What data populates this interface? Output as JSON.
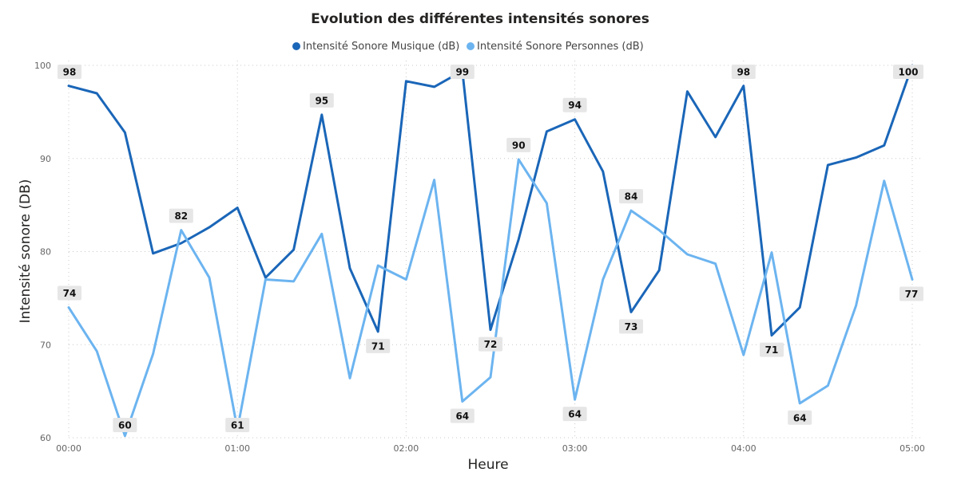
{
  "chart_data": {
    "type": "line",
    "title": "Evolution des différentes intensités sonores",
    "xlabel": "Heure",
    "ylabel": "Intensité sonore (DB)",
    "x_ticks": [
      "00:00",
      "01:00",
      "02:00",
      "03:00",
      "04:00",
      "05:00"
    ],
    "y_ticks": [
      60,
      70,
      80,
      90,
      100
    ],
    "ylim": [
      60,
      100
    ],
    "x_unit_minutes": 10,
    "x": [
      "00:00",
      "00:10",
      "00:20",
      "00:30",
      "00:40",
      "00:50",
      "01:00",
      "01:10",
      "01:20",
      "01:30",
      "01:40",
      "01:50",
      "02:00",
      "02:10",
      "02:20",
      "02:30",
      "02:40",
      "02:50",
      "03:00",
      "03:10",
      "03:20",
      "03:30",
      "03:40",
      "03:50",
      "04:00",
      "04:10",
      "04:20",
      "04:30",
      "04:40",
      "04:50",
      "05:00"
    ],
    "grid": true,
    "legend_position": "top-center",
    "series": [
      {
        "name": "Intensité Sonore Musique (dB)",
        "color": "#1a66b8",
        "values": [
          97.8,
          97.0,
          92.8,
          79.8,
          80.9,
          82.6,
          84.7,
          77.2,
          80.2,
          94.7,
          78.2,
          71.4,
          98.3,
          97.7,
          99.4,
          71.6,
          81.3,
          92.9,
          94.2,
          88.6,
          73.5,
          78.0,
          97.2,
          92.3,
          97.8,
          71.0,
          74.0,
          89.3,
          90.1,
          91.4,
          100.0
        ],
        "labels": [
          {
            "i": 0,
            "text": "98"
          },
          {
            "i": 9,
            "text": "95"
          },
          {
            "i": 11,
            "text": "71"
          },
          {
            "i": 14,
            "text": "99"
          },
          {
            "i": 15,
            "text": "72"
          },
          {
            "i": 18,
            "text": "94"
          },
          {
            "i": 20,
            "text": "73"
          },
          {
            "i": 24,
            "text": "98"
          },
          {
            "i": 25,
            "text": "71"
          },
          {
            "i": 30,
            "text": "100"
          }
        ]
      },
      {
        "name": "Intensité Sonore Personnes (dB)",
        "color": "#6cb4f0",
        "values": [
          74.0,
          69.3,
          60.2,
          69.0,
          82.3,
          77.2,
          60.9,
          77.0,
          76.8,
          81.9,
          66.4,
          78.5,
          77.0,
          87.7,
          63.9,
          66.5,
          89.9,
          85.2,
          64.1,
          77.0,
          84.4,
          82.3,
          79.7,
          78.7,
          68.9,
          79.9,
          63.7,
          65.6,
          74.2,
          87.6,
          77.0
        ],
        "labels": [
          {
            "i": 0,
            "text": "74"
          },
          {
            "i": 2,
            "text": "60"
          },
          {
            "i": 4,
            "text": "82"
          },
          {
            "i": 6,
            "text": "61"
          },
          {
            "i": 14,
            "text": "64"
          },
          {
            "i": 16,
            "text": "90"
          },
          {
            "i": 18,
            "text": "64"
          },
          {
            "i": 20,
            "text": "84"
          },
          {
            "i": 26,
            "text": "64"
          },
          {
            "i": 30,
            "text": "77"
          }
        ]
      }
    ]
  }
}
